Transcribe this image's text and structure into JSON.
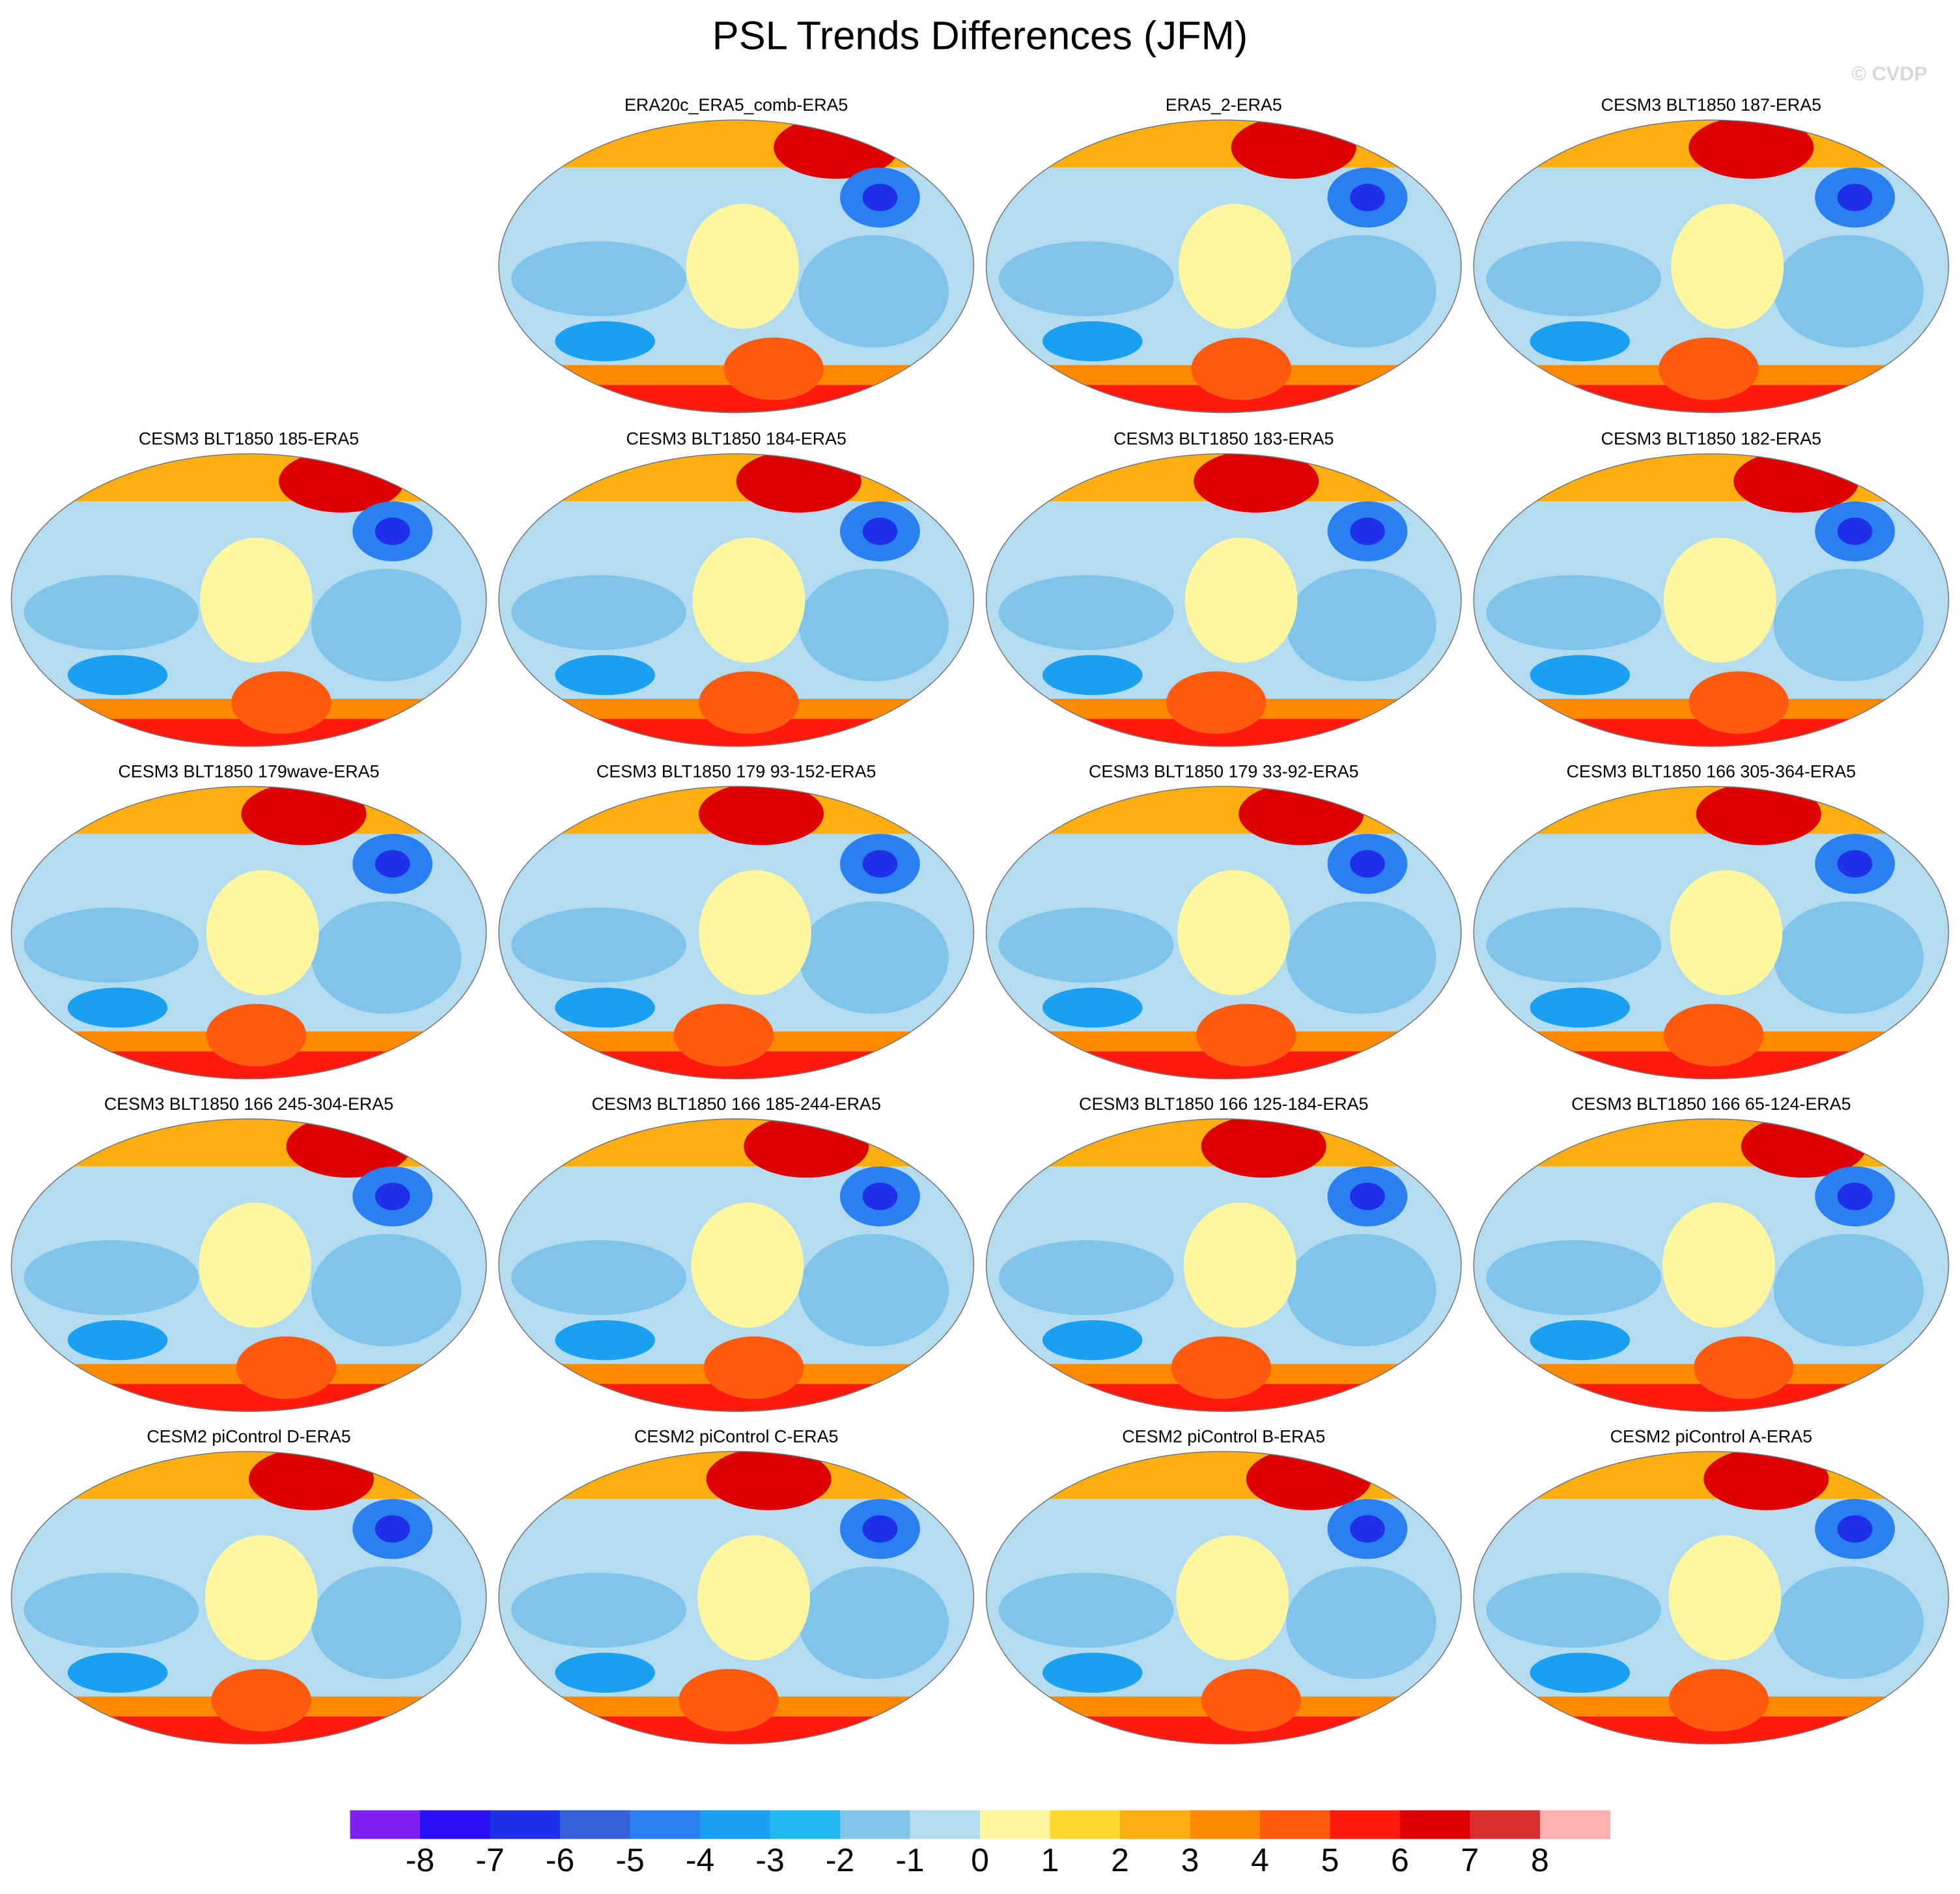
{
  "title": "PSL Trends Differences (JFM)",
  "watermark": "© CVDP",
  "panels": [
    "ERA20c_ERA5_comb-ERA5",
    "ERA5_2-ERA5",
    "CESM3 BLT1850 187-ERA5",
    "CESM3 BLT1850 185-ERA5",
    "CESM3 BLT1850 184-ERA5",
    "CESM3 BLT1850 183-ERA5",
    "CESM3 BLT1850 182-ERA5",
    "CESM3 BLT1850 179wave-ERA5",
    "CESM3 BLT1850 179 93-152-ERA5",
    "CESM3 BLT1850 179 33-92-ERA5",
    "CESM3 BLT1850 166 305-364-ERA5",
    "CESM3 BLT1850 166 245-304-ERA5",
    "CESM3 BLT1850 166 185-244-ERA5",
    "CESM3 BLT1850 166 125-184-ERA5",
    "CESM3 BLT1850 166 65-124-ERA5",
    "CESM2 piControl D-ERA5",
    "CESM2 piControl C-ERA5",
    "CESM2 piControl B-ERA5",
    "CESM2 piControl A-ERA5"
  ],
  "colorbar": {
    "colors": [
      "#8020f0",
      "#2a10f5",
      "#2030e8",
      "#3560d8",
      "#2a80f0",
      "#1aa0f0",
      "#22b8f2",
      "#80c4ea",
      "#b4dcf0",
      "#fff6a0",
      "#ffd830",
      "#ffae10",
      "#ff8a00",
      "#ff5a10",
      "#ff1a10",
      "#dd0000",
      "#d83030",
      "#ffb0b0"
    ],
    "ticks": [
      -8,
      -7,
      -6,
      -5,
      -4,
      -3,
      -2,
      -1,
      0,
      1,
      2,
      3,
      4,
      5,
      6,
      7,
      8
    ]
  }
}
